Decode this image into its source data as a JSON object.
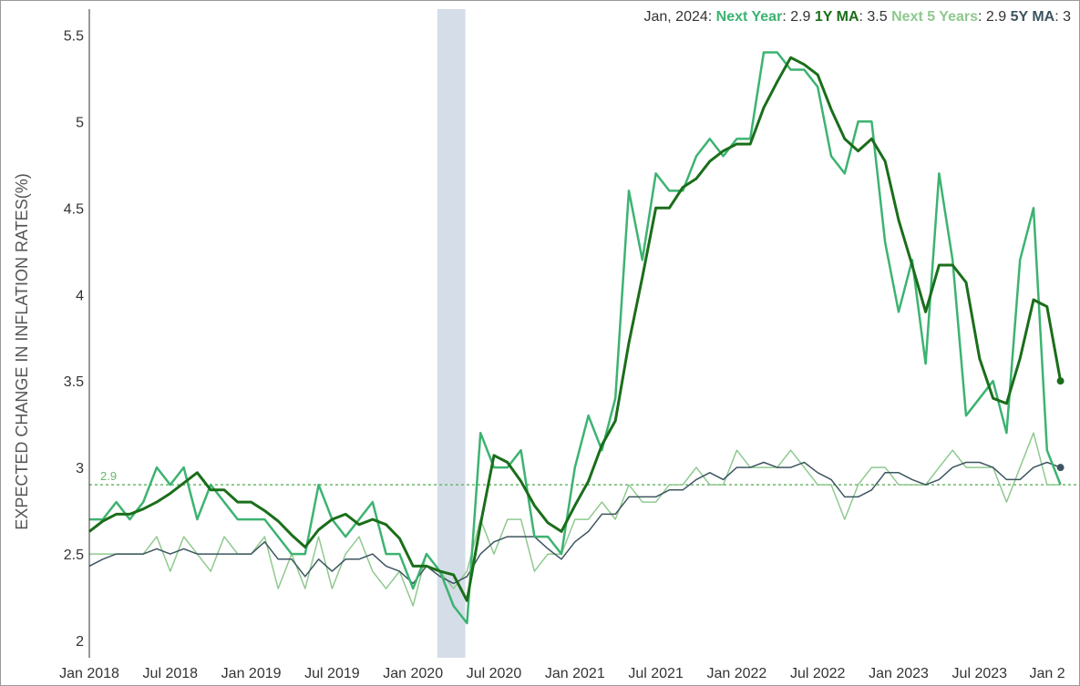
{
  "chart_data": {
    "type": "line",
    "ylabel": "EXPECTED CHANGE IN INFLATION RATES(%)",
    "xlim": [
      "2018-01",
      "2024-01"
    ],
    "ylim": [
      1.9,
      5.65
    ],
    "yticks": [
      "2",
      "2.5",
      "3",
      "3.5",
      "4",
      "4.5",
      "5",
      "5.5"
    ],
    "xticks": [
      "Jan 2018",
      "Jul 2018",
      "Jan 2019",
      "Jul 2019",
      "Jan 2020",
      "Jul 2020",
      "Jan 2021",
      "Jul 2021",
      "Jan 2022",
      "Jul 2022",
      "Jan 2023",
      "Jul 2023",
      "Jan 2"
    ],
    "recession_band": [
      "2020-03",
      "2020-04"
    ],
    "reference_line": {
      "value": 2.9,
      "label": "2.9"
    },
    "legend": {
      "date": "Jan, 2024",
      "items": [
        {
          "name": "Next Year",
          "value": "2.9"
        },
        {
          "name": "1Y MA",
          "value": "3.5"
        },
        {
          "name": "Next 5 Years",
          "value": "2.9"
        },
        {
          "name": "5Y MA",
          "value": "3"
        }
      ]
    },
    "colors": {
      "next_year": "#3cb371",
      "ma_1y": "#1a6e1a",
      "next_5y": "#8fc98f",
      "ma_5y": "#3d5560",
      "band": "#d5dde8",
      "reference": "#6ab86a",
      "axis": "#333333"
    },
    "series": [
      {
        "name": "Next Year",
        "values": [
          2.7,
          2.7,
          2.8,
          2.7,
          2.8,
          3.0,
          2.9,
          3.0,
          2.7,
          2.9,
          2.8,
          2.7,
          2.7,
          2.7,
          2.6,
          2.5,
          2.5,
          2.9,
          2.7,
          2.6,
          2.7,
          2.8,
          2.5,
          2.5,
          2.3,
          2.5,
          2.4,
          2.2,
          2.1,
          3.2,
          3.0,
          3.0,
          3.1,
          2.6,
          2.6,
          2.5,
          3.0,
          3.3,
          3.1,
          3.4,
          4.6,
          4.2,
          4.7,
          4.6,
          4.6,
          4.8,
          4.9,
          4.8,
          4.9,
          4.9,
          5.4,
          5.4,
          5.3,
          5.3,
          5.2,
          4.8,
          4.7,
          5.0,
          5.0,
          4.3,
          3.9,
          4.2,
          3.6,
          4.7,
          4.2,
          3.3,
          3.4,
          3.5,
          3.2,
          4.2,
          4.5,
          3.1,
          2.9
        ]
      },
      {
        "name": "1Y MA",
        "values": [
          2.63,
          2.69,
          2.73,
          2.73,
          2.76,
          2.8,
          2.85,
          2.91,
          2.97,
          2.87,
          2.87,
          2.8,
          2.8,
          2.75,
          2.69,
          2.61,
          2.54,
          2.64,
          2.7,
          2.73,
          2.67,
          2.7,
          2.67,
          2.59,
          2.43,
          2.43,
          2.4,
          2.38,
          2.23,
          2.67,
          3.07,
          3.03,
          2.92,
          2.78,
          2.68,
          2.63,
          2.78,
          2.92,
          3.13,
          3.27,
          3.72,
          4.1,
          4.5,
          4.5,
          4.62,
          4.67,
          4.77,
          4.83,
          4.87,
          4.87,
          5.08,
          5.23,
          5.37,
          5.33,
          5.27,
          5.07,
          4.9,
          4.83,
          4.9,
          4.77,
          4.43,
          4.17,
          3.9,
          4.17,
          4.17,
          4.07,
          3.63,
          3.4,
          3.37,
          3.63,
          3.97,
          3.93,
          3.5
        ]
      },
      {
        "name": "Next 5 Years",
        "values": [
          2.5,
          2.5,
          2.5,
          2.5,
          2.5,
          2.6,
          2.4,
          2.6,
          2.5,
          2.4,
          2.6,
          2.5,
          2.5,
          2.6,
          2.3,
          2.5,
          2.3,
          2.6,
          2.3,
          2.5,
          2.6,
          2.4,
          2.3,
          2.4,
          2.2,
          2.5,
          2.4,
          2.3,
          2.4,
          2.7,
          2.5,
          2.7,
          2.7,
          2.4,
          2.5,
          2.5,
          2.7,
          2.7,
          2.8,
          2.7,
          2.9,
          2.8,
          2.8,
          2.9,
          2.9,
          3.0,
          2.9,
          2.9,
          3.1,
          3.0,
          3.0,
          3.0,
          3.1,
          3.0,
          2.9,
          2.9,
          2.7,
          2.9,
          3.0,
          3.0,
          2.9,
          2.9,
          2.9,
          3.0,
          3.1,
          3.0,
          3.0,
          3.0,
          2.8,
          3.0,
          3.2,
          2.9,
          2.9
        ]
      },
      {
        "name": "5Y MA",
        "values": [
          2.43,
          2.47,
          2.5,
          2.5,
          2.5,
          2.53,
          2.5,
          2.53,
          2.5,
          2.5,
          2.5,
          2.5,
          2.5,
          2.57,
          2.47,
          2.47,
          2.37,
          2.47,
          2.4,
          2.47,
          2.47,
          2.5,
          2.43,
          2.4,
          2.33,
          2.43,
          2.37,
          2.33,
          2.37,
          2.5,
          2.57,
          2.6,
          2.6,
          2.6,
          2.53,
          2.47,
          2.57,
          2.63,
          2.73,
          2.73,
          2.83,
          2.83,
          2.83,
          2.87,
          2.87,
          2.93,
          2.97,
          2.93,
          3.0,
          3.0,
          3.03,
          3.0,
          3.0,
          3.03,
          2.97,
          2.93,
          2.83,
          2.83,
          2.87,
          2.97,
          2.97,
          2.93,
          2.9,
          2.93,
          3.0,
          3.03,
          3.03,
          3.0,
          2.93,
          2.93,
          3.0,
          3.03,
          3.0
        ]
      }
    ]
  }
}
